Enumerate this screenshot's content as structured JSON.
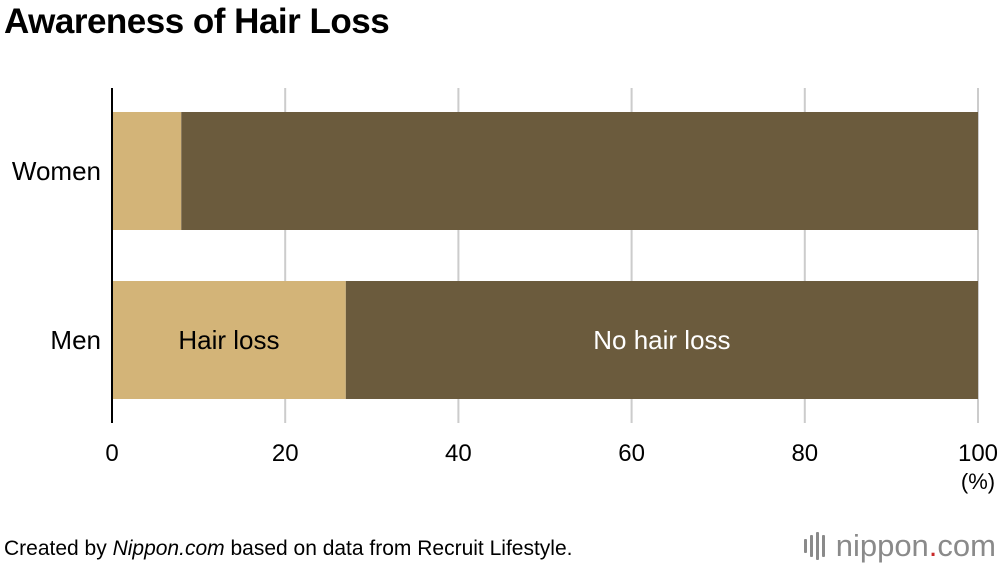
{
  "title": "Awareness of Hair Loss",
  "chart_data": {
    "type": "bar",
    "orientation": "horizontal",
    "stacked": true,
    "categories": [
      "Women",
      "Men"
    ],
    "series": [
      {
        "name": "Hair loss",
        "values": [
          8,
          27
        ],
        "color": "#d3b478"
      },
      {
        "name": "No hair loss",
        "values": [
          92,
          73
        ],
        "color": "#6b5b3d"
      }
    ],
    "series_labels_shown_on": "Men",
    "xlim": [
      0,
      100
    ],
    "xticks": [
      0,
      20,
      40,
      60,
      80,
      100
    ],
    "xticklabels": [
      "0",
      "20",
      "40",
      "60",
      "80",
      "100"
    ],
    "xunit": "(%)",
    "grid": true,
    "gridline_color": "#cccccc"
  },
  "footer": {
    "prefix": "Created by ",
    "site": "Nippon.com",
    "suffix": " based on data from Recruit Lifestyle."
  },
  "logo": {
    "main": "nippon",
    "dot": ".",
    "tld": "com"
  }
}
